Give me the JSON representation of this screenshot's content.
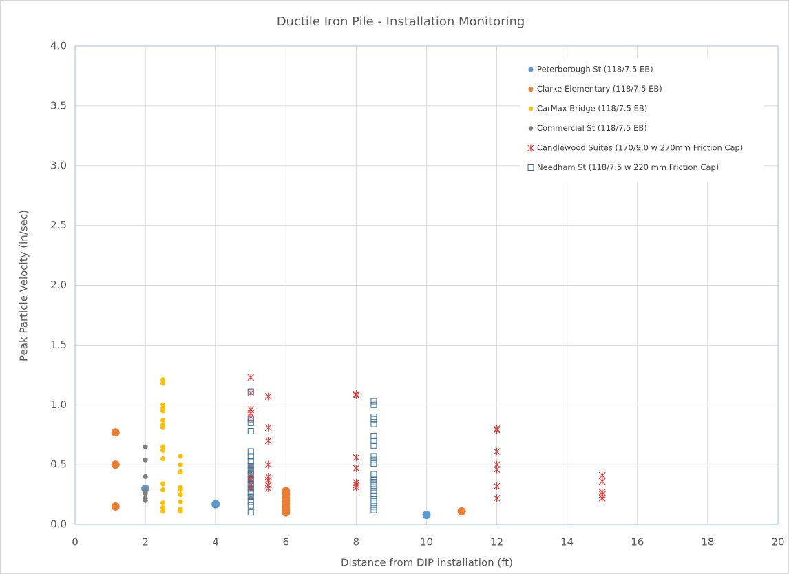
{
  "chart_data": {
    "type": "scatter",
    "title": "Ductile Iron Pile - Installation Monitoring",
    "x_label": "Distance from DIP installation (ft)",
    "y_label": "Peak Particle Velocity (in/sec)",
    "xlim": [
      0,
      20
    ],
    "xticks": [
      0,
      2,
      4,
      6,
      8,
      10,
      12,
      14,
      16,
      18,
      20
    ],
    "ylim": [
      0,
      4
    ],
    "yticks": [
      {
        "value": 0,
        "label": "0.0"
      },
      {
        "value": 0.5,
        "label": "0.5"
      },
      {
        "value": 1,
        "label": "1.0"
      },
      {
        "value": 1.5,
        "label": "1.5"
      },
      {
        "value": 2,
        "label": "2.0"
      },
      {
        "value": 2.5,
        "label": "2.5"
      },
      {
        "value": 3,
        "label": "3.0"
      },
      {
        "value": 3.5,
        "label": "3.5"
      },
      {
        "value": 4,
        "label": "4.0"
      }
    ],
    "grid": true,
    "legend": "top-right",
    "series": [
      {
        "name": "Peterborough St (118/7.5 EB)",
        "color": "#5b9bd5",
        "marker": "circle-large",
        "x": [
          2,
          4,
          10
        ],
        "values": [
          0.3,
          0.17,
          0.08
        ]
      },
      {
        "name": "Clarke Elementary (118/7.5 EB)",
        "color": "#ed7d31",
        "marker": "circle-large",
        "x": [
          1.15,
          1.15,
          1.15,
          6,
          6,
          6,
          6,
          6,
          6,
          6,
          6,
          11
        ],
        "values": [
          0.77,
          0.5,
          0.15,
          0.28,
          0.25,
          0.22,
          0.2,
          0.17,
          0.14,
          0.12,
          0.1,
          0.11
        ]
      },
      {
        "name": "CarMax Bridge (118/7.5 EB)",
        "color": "#ffc000",
        "marker": "circle",
        "x": [
          2.5,
          2.5,
          2.5,
          2.5,
          2.5,
          2.5,
          2.5,
          2.5,
          2.5,
          2.5,
          2.5,
          2.5,
          2.5,
          2.5,
          2.5,
          2.5,
          3,
          3,
          3,
          3,
          3,
          3,
          3,
          3,
          3
        ],
        "values": [
          1.21,
          1.18,
          1.0,
          0.97,
          0.95,
          0.87,
          0.83,
          0.81,
          0.65,
          0.62,
          0.55,
          0.34,
          0.29,
          0.18,
          0.14,
          0.11,
          0.57,
          0.5,
          0.44,
          0.31,
          0.29,
          0.25,
          0.19,
          0.13,
          0.11
        ]
      },
      {
        "name": "Commercial St (118/7.5 EB)",
        "color": "#7f7f7f",
        "marker": "circle",
        "x": [
          2,
          2,
          2,
          2,
          2,
          2,
          2,
          5,
          5,
          5,
          5,
          5,
          5
        ],
        "values": [
          0.65,
          0.54,
          0.4,
          0.29,
          0.26,
          0.22,
          0.2,
          0.49,
          0.45,
          0.4,
          0.36,
          0.3,
          0.22
        ]
      },
      {
        "name": "Candlewood Suites (170/9.0 w 270mm Friction Cap)",
        "color": "#e03c3c",
        "marker": "asterisk",
        "x": [
          5,
          5,
          5,
          5,
          5,
          5,
          5,
          5,
          5,
          5.5,
          5.5,
          5.5,
          5.5,
          5.5,
          5.5,
          5.5,
          5.5,
          8,
          8,
          8,
          8,
          8,
          8,
          8,
          12,
          12,
          12,
          12,
          12,
          12,
          12,
          15,
          15,
          15,
          15,
          15
        ],
        "values": [
          1.23,
          1.1,
          0.96,
          0.93,
          0.9,
          0.4,
          0.37,
          0.33,
          0.3,
          1.07,
          0.81,
          0.7,
          0.5,
          0.4,
          0.37,
          0.33,
          0.3,
          1.09,
          1.08,
          0.56,
          0.47,
          0.35,
          0.33,
          0.31,
          0.8,
          0.79,
          0.61,
          0.5,
          0.46,
          0.32,
          0.22,
          0.41,
          0.36,
          0.27,
          0.25,
          0.22
        ]
      },
      {
        "name": "Needham St (118/7.5 w 220 mm Friction Cap)",
        "color": "#2e6da4",
        "marker": "square",
        "x": [
          5,
          5,
          5,
          5,
          5,
          5,
          5,
          5,
          5,
          5,
          5,
          5,
          5,
          5,
          5,
          5,
          5,
          5,
          8.5,
          8.5,
          8.5,
          8.5,
          8.5,
          8.5,
          8.5,
          8.5,
          8.5,
          8.5,
          8.5,
          8.5,
          8.5,
          8.5,
          8.5,
          8.5,
          8.5,
          8.5,
          8.5,
          8.5,
          8.5,
          8.5
        ],
        "values": [
          1.11,
          0.88,
          0.85,
          0.78,
          0.61,
          0.57,
          0.53,
          0.49,
          0.45,
          0.42,
          0.38,
          0.34,
          0.3,
          0.27,
          0.23,
          0.19,
          0.16,
          0.1,
          1.03,
          1.0,
          0.9,
          0.88,
          0.84,
          0.74,
          0.7,
          0.66,
          0.57,
          0.54,
          0.51,
          0.42,
          0.4,
          0.37,
          0.34,
          0.31,
          0.28,
          0.24,
          0.21,
          0.18,
          0.15,
          0.12
        ]
      }
    ]
  }
}
